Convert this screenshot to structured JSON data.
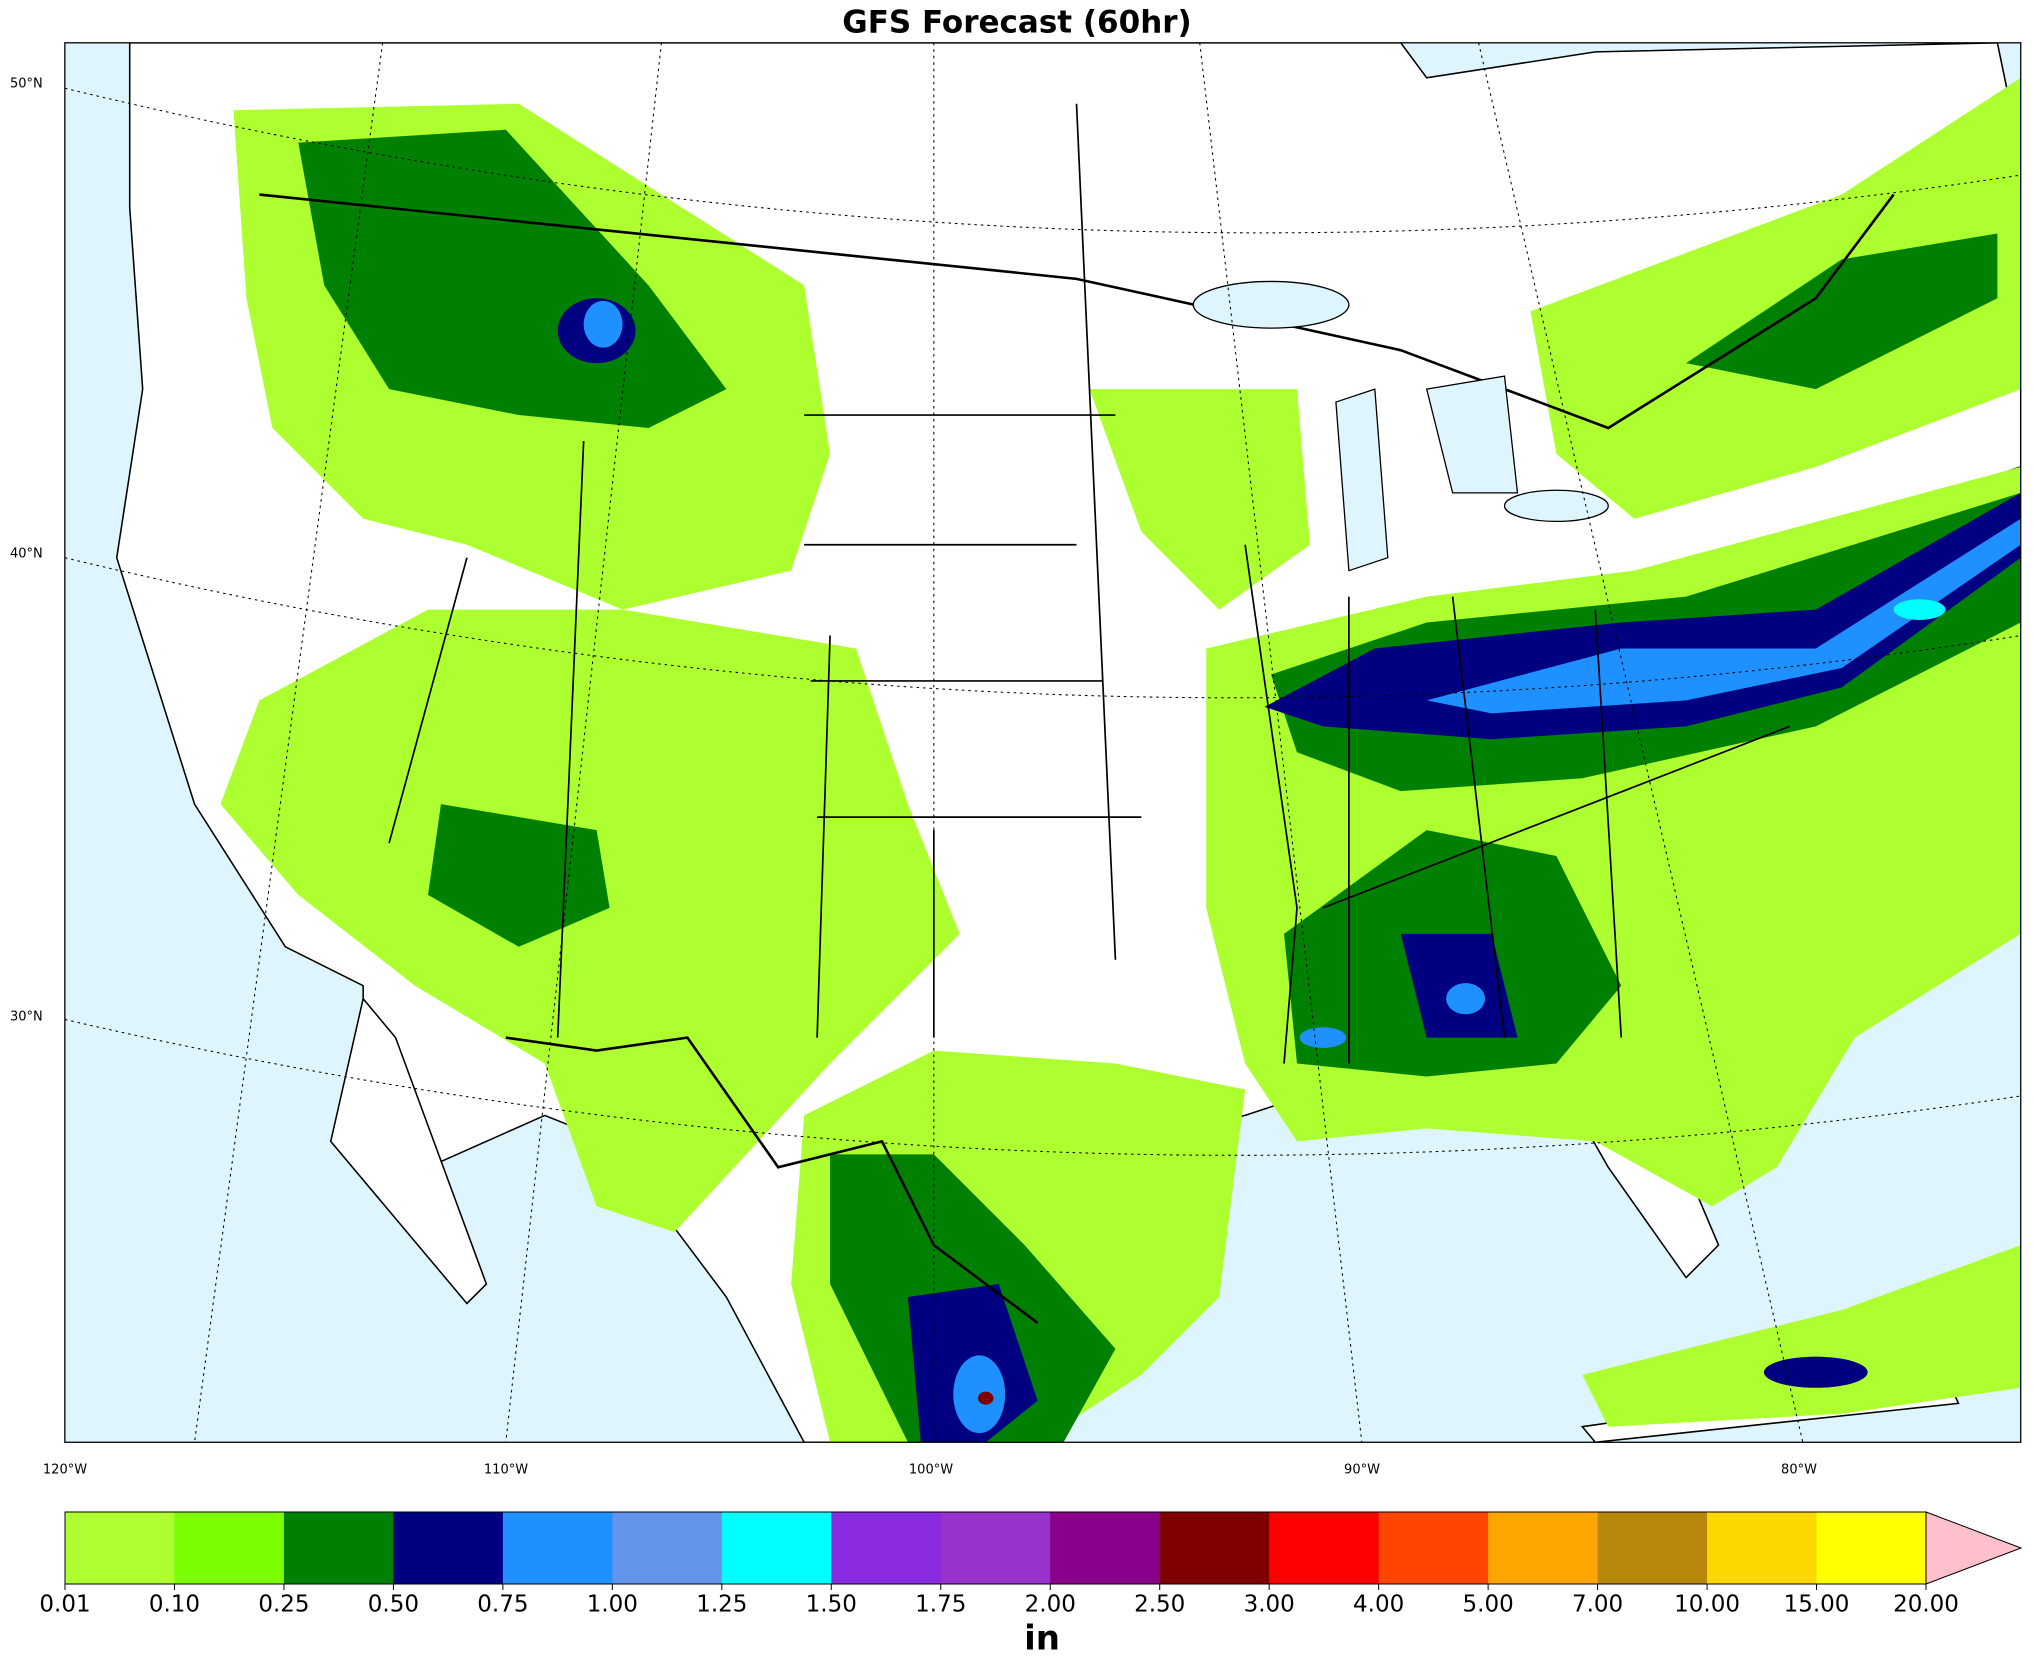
{
  "title": "GFS Forecast (60hr)",
  "map": {
    "lat_labels": [
      "50°N",
      "40°N",
      "30°N"
    ],
    "lon_labels": [
      "120°W",
      "110°W",
      "100°W",
      "90°W",
      "80°W"
    ]
  },
  "colorbar": {
    "levels": [
      "0.01",
      "0.10",
      "0.25",
      "0.50",
      "0.75",
      "1.00",
      "1.25",
      "1.50",
      "1.75",
      "2.00",
      "2.50",
      "3.00",
      "4.00",
      "5.00",
      "7.00",
      "10.00",
      "15.00",
      "20.00"
    ],
    "colors": [
      "#adff2f",
      "#7cfc00",
      "#008000",
      "#000080",
      "#1e90ff",
      "#6495ed",
      "#00ffff",
      "#8a2be2",
      "#9932cc",
      "#8b008b",
      "#800000",
      "#ff0000",
      "#ff4500",
      "#ffa500",
      "#b8860b",
      "#ffd700",
      "#ffff00"
    ],
    "extend_color": "#ffc0cb",
    "unit": "in"
  }
}
